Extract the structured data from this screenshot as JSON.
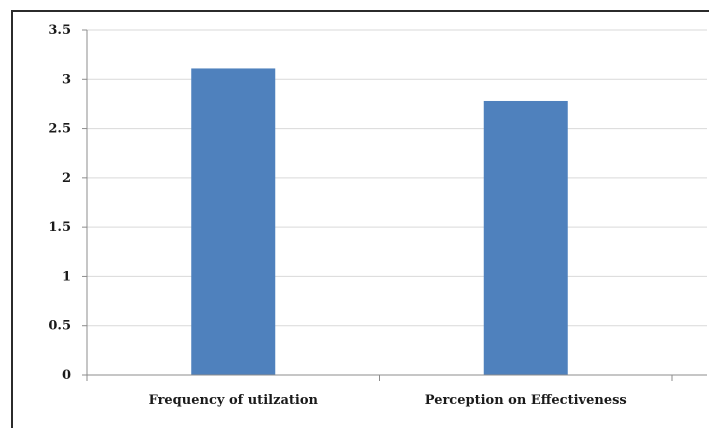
{
  "chart_data": {
    "type": "bar",
    "categories": [
      "Frequency of utilzation",
      "Perception on Effectiveness"
    ],
    "series": [
      {
        "values": [
          3.11,
          2.78
        ]
      }
    ],
    "title": "",
    "xlabel": "",
    "ylabel": "",
    "ylim": [
      0,
      3.5
    ],
    "yticks": [
      "0",
      "0.5",
      "1",
      "1.5",
      "2",
      "2.5",
      "3",
      "3.5"
    ],
    "grid": true,
    "legend": "none",
    "bar_color": "#4f81bd"
  }
}
